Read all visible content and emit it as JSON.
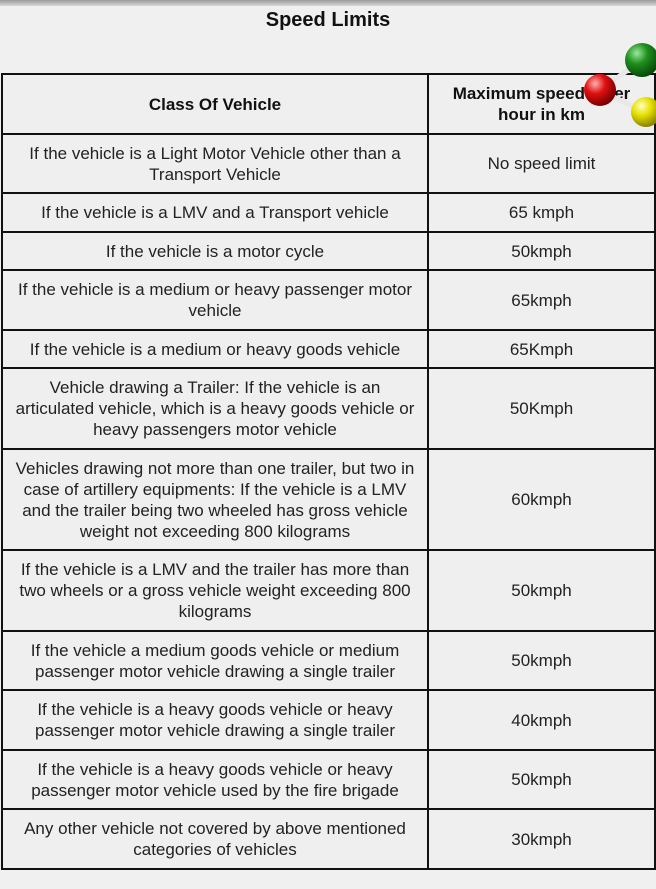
{
  "title": "Speed Limits",
  "table": {
    "headers": [
      "Class Of Vehicle",
      "Maximum speed li per\nhour in km"
    ],
    "rows": [
      {
        "vehicle": "If the vehicle is a Light Motor Vehicle other than a Transport Vehicle",
        "speed": "No speed limit"
      },
      {
        "vehicle": "If the vehicle is a LMV and a Transport vehicle",
        "speed": "65 kmph"
      },
      {
        "vehicle": "If the vehicle is a motor cycle",
        "speed": "50kmph"
      },
      {
        "vehicle": "If the vehicle is a medium or heavy passenger motor vehicle",
        "speed": "65kmph"
      },
      {
        "vehicle": "If the vehicle is a medium or heavy goods vehicle",
        "speed": "65Kmph"
      },
      {
        "vehicle": "Vehicle drawing a Trailer: If the vehicle is an articulated vehicle, which is a heavy goods vehicle or heavy passengers motor vehicle",
        "speed": "50Kmph"
      },
      {
        "vehicle": "Vehicles drawing not more than one trailer, but two in case of artillery equipments: If the vehicle is a LMV and the trailer being two wheeled has gross vehicle weight not exceeding 800 kilograms",
        "speed": "60kmph"
      },
      {
        "vehicle": "If the vehicle is a LMV and the trailer has more than two wheels or a gross vehicle weight exceeding 800 kilograms",
        "speed": "50kmph"
      },
      {
        "vehicle": "If the vehicle a medium goods vehicle or medium passenger motor vehicle drawing a single trailer",
        "speed": "50kmph"
      },
      {
        "vehicle": "If the vehicle is a heavy goods vehicle or heavy passenger motor vehicle drawing a single trailer",
        "speed": "40kmph"
      },
      {
        "vehicle": "If the vehicle is a heavy goods vehicle or heavy passenger motor vehicle used by the fire brigade",
        "speed": "50kmph"
      },
      {
        "vehicle": "Any other vehicle not covered by above mentioned categories of vehicles",
        "speed": "30kmph"
      }
    ]
  },
  "colors": {
    "ball_green": "#1e8f1e",
    "ball_red": "#e01010",
    "ball_yellow": "#e6e000"
  },
  "icons": {
    "overlay": "molecule-icon"
  }
}
